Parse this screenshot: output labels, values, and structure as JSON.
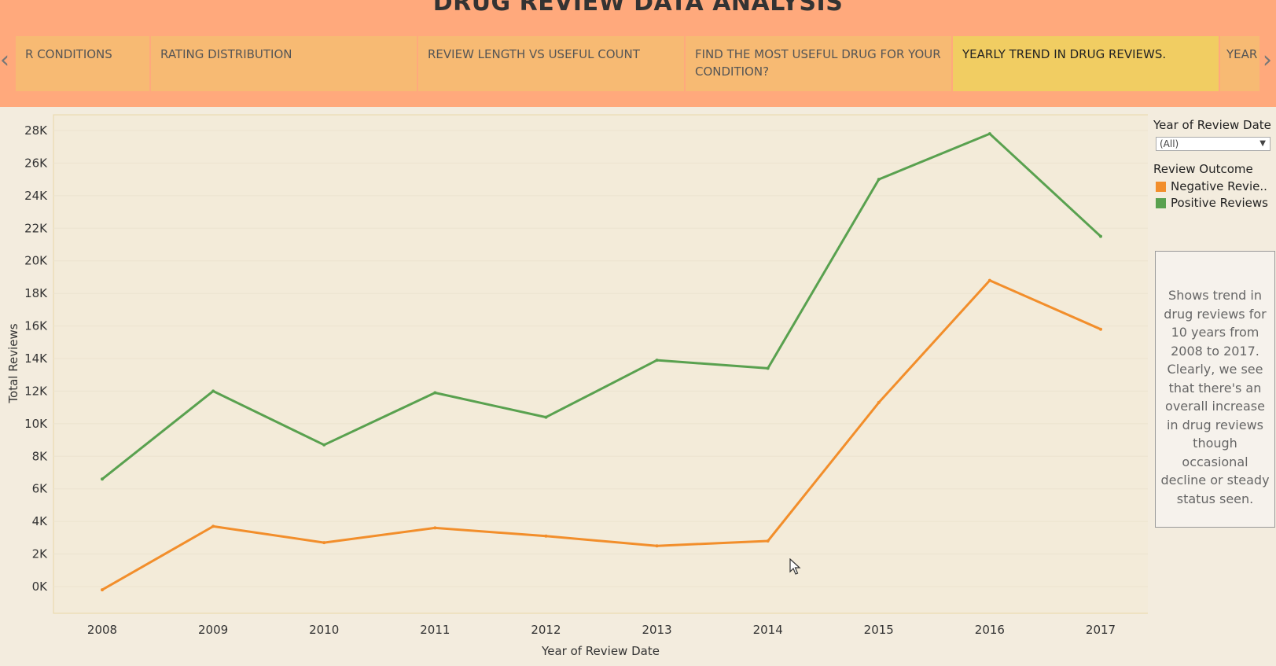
{
  "header": {
    "title": "DRUG REVIEW DATA ANALYSIS",
    "tabs": [
      {
        "label": "R CONDITIONS"
      },
      {
        "label": "RATING DISTRIBUTION"
      },
      {
        "label": "REVIEW LENGTH VS USEFUL COUNT"
      },
      {
        "label": "FIND THE MOST USEFUL DRUG FOR YOUR CONDITION?"
      },
      {
        "label": "YEARLY TREND IN DRUG REVIEWS."
      },
      {
        "label": "YEAR"
      }
    ],
    "prev_arrow": "‹",
    "next_arrow": "›"
  },
  "filter": {
    "label": "Year of Review Date",
    "value": "(All)"
  },
  "legend": {
    "title": "Review Outcome",
    "items": [
      {
        "label": "Negative Revie..",
        "color": "#f28e2b"
      },
      {
        "label": "Positive Reviews",
        "color": "#59a14f"
      }
    ]
  },
  "note": "Shows trend in drug reviews for 10 years from 2008 to 2017. Clearly, we see that there's an overall increase in drug reviews though occasional decline or steady status seen.",
  "chart_data": {
    "type": "line",
    "x": [
      2008,
      2009,
      2010,
      2011,
      2012,
      2013,
      2014,
      2015,
      2016,
      2017
    ],
    "series": [
      {
        "name": "Negative Revie..",
        "color": "#f28e2b",
        "values": [
          -200,
          3700,
          2700,
          3600,
          3100,
          2500,
          2800,
          11300,
          18800,
          15800
        ]
      },
      {
        "name": "Positive Reviews",
        "color": "#59a14f",
        "values": [
          6600,
          12000,
          8700,
          11900,
          10400,
          13900,
          13400,
          25000,
          27800,
          21500
        ]
      }
    ],
    "xlabel": "Year of Review Date",
    "ylabel": "Total Reviews",
    "y_ticks": [
      0,
      2000,
      4000,
      6000,
      8000,
      10000,
      12000,
      14000,
      16000,
      18000,
      20000,
      22000,
      24000,
      26000,
      28000
    ],
    "y_tick_labels": [
      "0K",
      "2K",
      "4K",
      "6K",
      "8K",
      "10K",
      "12K",
      "14K",
      "16K",
      "18K",
      "20K",
      "22K",
      "24K",
      "26K",
      "28K"
    ],
    "ylim": [
      -500,
      29500
    ],
    "grid": true
  }
}
